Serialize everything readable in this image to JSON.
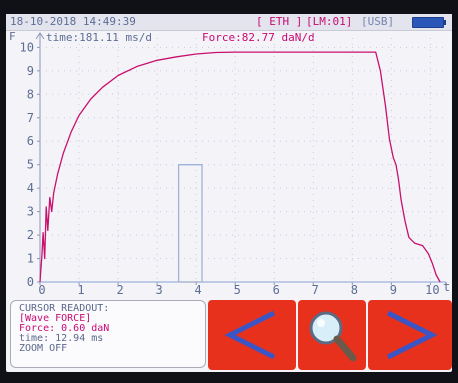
{
  "status_bar": {
    "datetime": "18-10-2018 14:49:39",
    "eth": "[ ETH ]",
    "lm": "[LM:01]",
    "usb": "[USB]",
    "battery": "battery-icon"
  },
  "plot_header": {
    "y_label": "F",
    "time_scale": "time:181.11 ms/d",
    "force_scale": "Force:82.77 daN/d",
    "x_label": "t"
  },
  "cursor_readout": {
    "title": "CURSOR READOUT:",
    "wave": "[Wave FORCE]",
    "force": "Force: 0.60 daN",
    "time": "time: 12.94 ms",
    "zoom": "ZOOM OFF"
  },
  "buttons": {
    "prev": "chevron-left-icon",
    "zoom": "magnifier-icon",
    "next": "chevron-right-icon"
  },
  "colors": {
    "force_trace": "#c8106e",
    "pulse_trace": "#9eb2da",
    "button_bg": "#e8311c",
    "screen_bg": "#f4f3f8"
  },
  "chart_data": {
    "type": "line",
    "x_ticks": [
      "0",
      "1",
      "2",
      "3",
      "4",
      "5",
      "6",
      "7",
      "8",
      "9",
      "10"
    ],
    "y_ticks": [
      "0",
      "1",
      "2",
      "3",
      "4",
      "5",
      "6",
      "7",
      "8",
      "9",
      "10"
    ],
    "xlim": [
      0,
      10.4
    ],
    "ylim": [
      0,
      10.4
    ],
    "grid": true,
    "series": [
      {
        "color": "#c8106e",
        "points": [
          [
            0,
            0
          ],
          [
            0.05,
            1.2
          ],
          [
            0.08,
            2.1
          ],
          [
            0.12,
            1.0
          ],
          [
            0.16,
            3.2
          ],
          [
            0.2,
            2.2
          ],
          [
            0.25,
            3.6
          ],
          [
            0.3,
            3.0
          ],
          [
            0.35,
            3.8
          ],
          [
            0.45,
            4.6
          ],
          [
            0.6,
            5.5
          ],
          [
            0.8,
            6.4
          ],
          [
            1.0,
            7.1
          ],
          [
            1.3,
            7.8
          ],
          [
            1.6,
            8.3
          ],
          [
            2.0,
            8.8
          ],
          [
            2.5,
            9.2
          ],
          [
            3.0,
            9.45
          ],
          [
            3.5,
            9.6
          ],
          [
            4.0,
            9.72
          ],
          [
            4.5,
            9.78
          ],
          [
            5.0,
            9.8
          ],
          [
            8.6,
            9.8
          ],
          [
            8.72,
            9.0
          ],
          [
            8.85,
            7.5
          ],
          [
            8.95,
            6.1
          ],
          [
            9.05,
            5.3
          ],
          [
            9.12,
            5.0
          ],
          [
            9.18,
            4.4
          ],
          [
            9.25,
            3.5
          ],
          [
            9.35,
            2.6
          ],
          [
            9.45,
            1.9
          ],
          [
            9.6,
            1.65
          ],
          [
            9.8,
            1.55
          ],
          [
            9.95,
            1.2
          ],
          [
            10.05,
            0.8
          ],
          [
            10.15,
            0.3
          ],
          [
            10.25,
            0.0
          ]
        ]
      },
      {
        "color": "#9eb2da",
        "points": [
          [
            0,
            0
          ],
          [
            3.55,
            0
          ],
          [
            3.55,
            5.0
          ],
          [
            4.15,
            5.0
          ],
          [
            4.15,
            0
          ],
          [
            10.4,
            0
          ]
        ]
      }
    ]
  }
}
